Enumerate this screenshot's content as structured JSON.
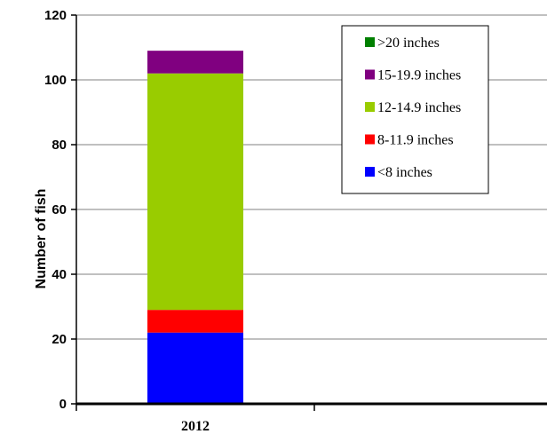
{
  "chart_data": {
    "type": "bar",
    "stacked": true,
    "title": "",
    "xlabel": "",
    "ylabel": "Number of fish",
    "ylim": [
      0,
      120
    ],
    "yticks": [
      0,
      20,
      40,
      60,
      80,
      100,
      120
    ],
    "grid": true,
    "legend_position": "top-right",
    "categories": [
      "2012",
      ""
    ],
    "series": [
      {
        "name": "<8 inches",
        "color": "#0000FF",
        "values": [
          22,
          0
        ]
      },
      {
        "name": "8-11.9 inches",
        "color": "#FF0000",
        "values": [
          7,
          0
        ]
      },
      {
        "name": "12-14.9 inches",
        "color": "#99CC00",
        "values": [
          73,
          0
        ]
      },
      {
        "name": "15-19.9 inches",
        "color": "#800080",
        "values": [
          7,
          0
        ]
      },
      {
        "name": ">20 inches",
        "color": "#008000",
        "values": [
          0,
          0
        ]
      }
    ],
    "legend_order": [
      ">20 inches",
      "15-19.9 inches",
      "12-14.9 inches",
      "8-11.9 inches",
      "<8 inches"
    ]
  }
}
